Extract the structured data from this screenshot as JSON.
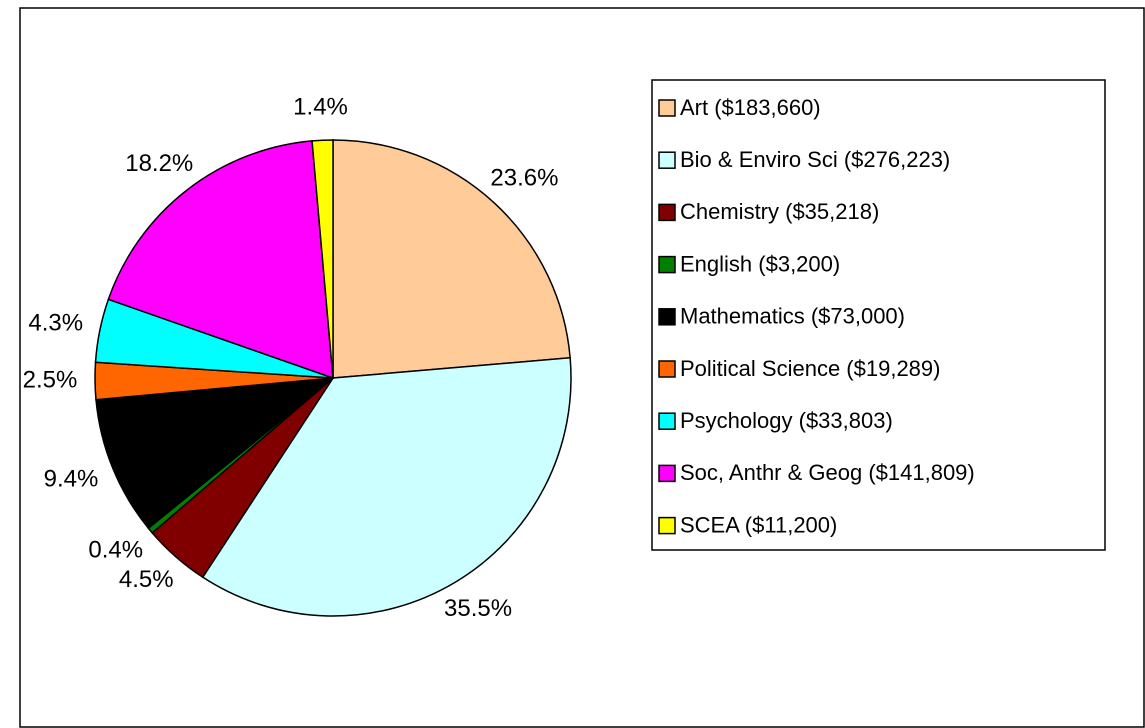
{
  "chart_data": {
    "type": "pie",
    "categories": [
      "Art ($183,660)",
      "Bio & Enviro Sci ($276,223)",
      "Chemistry ($35,218)",
      "English ($3,200)",
      "Mathematics ($73,000)",
      "Political Science ($19,289)",
      "Psychology ($33,803)",
      "Soc, Anthr & Geog ($141,809)",
      "SCEA ($11,200)"
    ],
    "values": [
      23.6,
      35.5,
      4.5,
      0.4,
      9.4,
      2.5,
      4.3,
      18.2,
      1.4
    ],
    "value_labels": [
      "23.6%",
      "35.5%",
      "4.5%",
      "0.4%",
      "9.4%",
      "2.5%",
      "4.3%",
      "18.2%",
      "1.4%"
    ],
    "colors": [
      "#FFCC99",
      "#CCFFFF",
      "#800000",
      "#008000",
      "#000000",
      "#FF6600",
      "#00FFFF",
      "#FF00FF",
      "#FFFF00"
    ],
    "legend": "right"
  }
}
